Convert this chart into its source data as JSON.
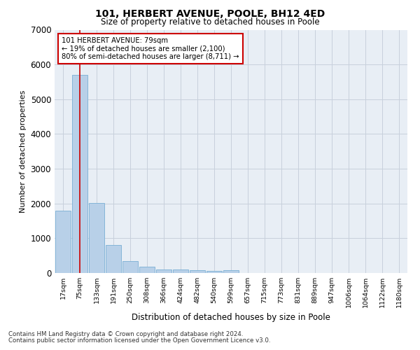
{
  "title": "101, HERBERT AVENUE, POOLE, BH12 4ED",
  "subtitle": "Size of property relative to detached houses in Poole",
  "xlabel": "Distribution of detached houses by size in Poole",
  "ylabel": "Number of detached properties",
  "bar_color": "#b8d0e8",
  "bar_edge_color": "#7aafd4",
  "grid_color": "#c8d0dc",
  "bg_color": "#e8eef5",
  "vline_color": "#cc0000",
  "annotation_box_color": "#cc0000",
  "annotation_text": "101 HERBERT AVENUE: 79sqm\n← 19% of detached houses are smaller (2,100)\n80% of semi-detached houses are larger (8,711) →",
  "vline_x": 1,
  "categories": [
    "17sqm",
    "75sqm",
    "133sqm",
    "191sqm",
    "250sqm",
    "308sqm",
    "366sqm",
    "424sqm",
    "482sqm",
    "540sqm",
    "599sqm",
    "657sqm",
    "715sqm",
    "773sqm",
    "831sqm",
    "889sqm",
    "947sqm",
    "1006sqm",
    "1064sqm",
    "1122sqm",
    "1180sqm"
  ],
  "values": [
    1800,
    5700,
    2020,
    800,
    340,
    175,
    100,
    95,
    80,
    55,
    80,
    0,
    0,
    0,
    0,
    0,
    0,
    0,
    0,
    0,
    0
  ],
  "ylim": [
    0,
    7000
  ],
  "yticks": [
    0,
    1000,
    2000,
    3000,
    4000,
    5000,
    6000,
    7000
  ],
  "footnote1": "Contains HM Land Registry data © Crown copyright and database right 2024.",
  "footnote2": "Contains public sector information licensed under the Open Government Licence v3.0."
}
